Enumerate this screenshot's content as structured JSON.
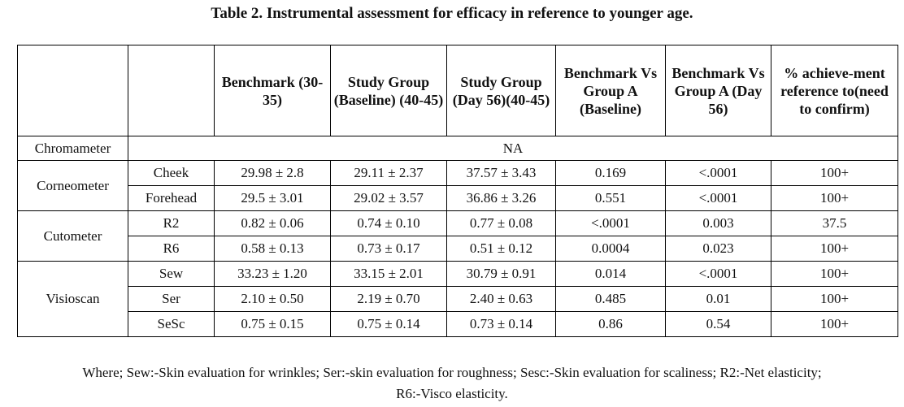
{
  "title": "Table 2. Instrumental assessment for efficacy in reference to younger age.",
  "headers": [
    "",
    "",
    "Benchmark (30-35)",
    "Study Group (Baseline) (40-45)",
    "Study Group (Day 56)(40-45)",
    "Benchmark Vs Group A (Baseline)",
    "Benchmark Vs Group A (Day 56)",
    "% achieve-ment reference to(need to confirm)"
  ],
  "chromameter": {
    "label": "Chromameter",
    "value": "NA"
  },
  "groups": [
    {
      "name": "Corneometer",
      "rows": [
        {
          "sub": "Cheek",
          "cells": [
            "29.98 ± 2.8",
            "29.11 ± 2.37",
            "37.57 ± 3.43",
            "0.169",
            "<.0001",
            "100+"
          ]
        },
        {
          "sub": "Forehead",
          "cells": [
            "29.5 ± 3.01",
            "29.02 ± 3.57",
            "36.86 ± 3.26",
            "0.551",
            "<.0001",
            "100+"
          ]
        }
      ]
    },
    {
      "name": "Cutometer",
      "rows": [
        {
          "sub": "R2",
          "cells": [
            "0.82 ± 0.06",
            "0.74 ± 0.10",
            "0.77 ± 0.08",
            "<.0001",
            "0.003",
            "37.5"
          ]
        },
        {
          "sub": "R6",
          "cells": [
            "0.58 ± 0.13",
            "0.73 ± 0.17",
            "0.51 ± 0.12",
            "0.0004",
            "0.023",
            "100+"
          ]
        }
      ]
    },
    {
      "name": "Visioscan",
      "rows": [
        {
          "sub": "Sew",
          "cells": [
            "33.23 ± 1.20",
            "33.15 ± 2.01",
            "30.79 ± 0.91",
            "0.014",
            "<.0001",
            "100+"
          ]
        },
        {
          "sub": "Ser",
          "cells": [
            "2.10 ± 0.50",
            "2.19 ± 0.70",
            "2.40 ± 0.63",
            "0.485",
            "0.01",
            "100+"
          ]
        },
        {
          "sub": "SeSc",
          "cells": [
            "0.75 ± 0.15",
            "0.75 ± 0.14",
            "0.73 ± 0.14",
            "0.86",
            "0.54",
            "100+"
          ]
        }
      ]
    }
  ],
  "footer": {
    "line1": "Where; Sew:-Skin evaluation for wrinkles; Ser:-skin evaluation for roughness; Sesc:-Skin evaluation for scaliness; R2:-Net elasticity;",
    "line2": "R6:-Visco elasticity."
  }
}
